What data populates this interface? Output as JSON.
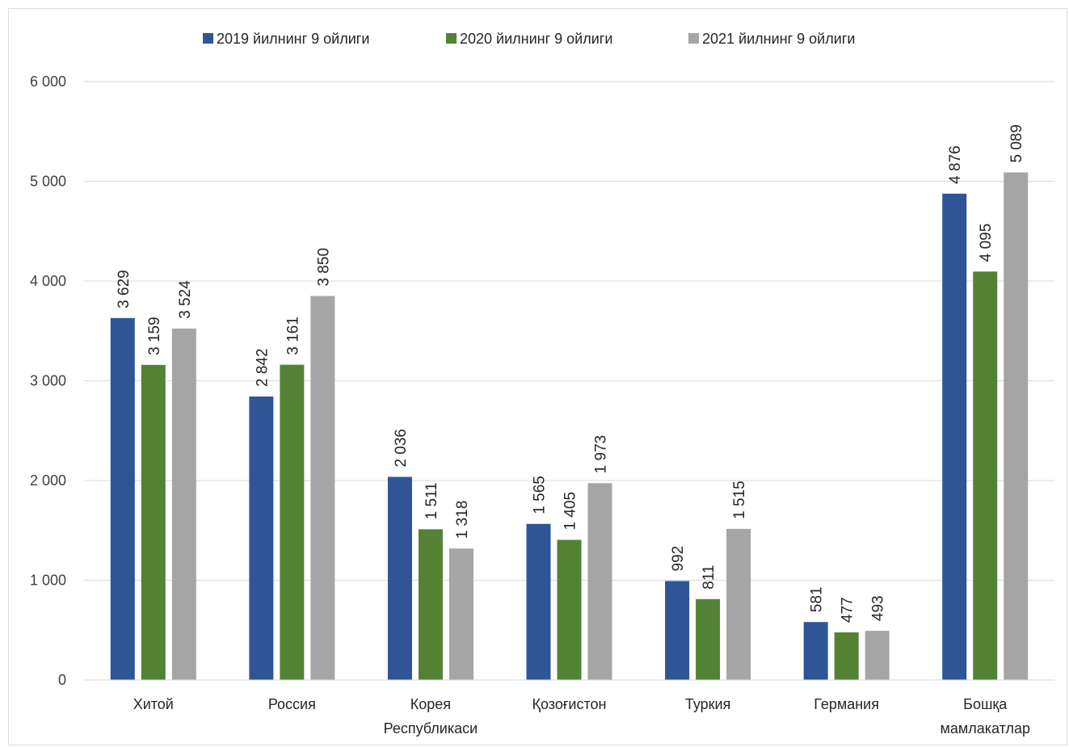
{
  "chart_data": {
    "type": "bar",
    "categories": [
      [
        "Хитой"
      ],
      [
        "Россия"
      ],
      [
        "Корея",
        "Республикаси"
      ],
      [
        "Қозоғистон"
      ],
      [
        "Туркия"
      ],
      [
        "Германия"
      ],
      [
        "Бошқа",
        "мамлакатлар"
      ]
    ],
    "series": [
      {
        "name": "2019 йилнинг 9 ойлиги",
        "color": "#2F5597",
        "values": [
          3629,
          2842,
          2036,
          1565,
          992,
          581,
          4876
        ],
        "labels": [
          "3 629",
          "2 842",
          "2 036",
          "1 565",
          "992",
          "581",
          "4 876"
        ]
      },
      {
        "name": "2020 йилнинг 9 ойлиги",
        "color": "#548235",
        "values": [
          3159,
          3161,
          1511,
          1405,
          811,
          477,
          4095
        ],
        "labels": [
          "3 159",
          "3 161",
          "1 511",
          "1 405",
          "811",
          "477",
          "4 095"
        ]
      },
      {
        "name": "2021 йилнинг 9 ойлиги",
        "color": "#A5A5A5",
        "values": [
          3524,
          3850,
          1318,
          1973,
          1515,
          493,
          5089
        ],
        "labels": [
          "3 524",
          "3 850",
          "1 318",
          "1 973",
          "1 515",
          "493",
          "5 089"
        ]
      }
    ],
    "y_ticks": [
      0,
      1000,
      2000,
      3000,
      4000,
      5000,
      6000
    ],
    "y_tick_labels": [
      "0",
      "1 000",
      "2 000",
      "3 000",
      "4 000",
      "5 000",
      "6 000"
    ],
    "ylim": [
      0,
      6000
    ],
    "grid": true,
    "legend_position": "top-center",
    "title": "",
    "xlabel": "",
    "ylabel": ""
  }
}
